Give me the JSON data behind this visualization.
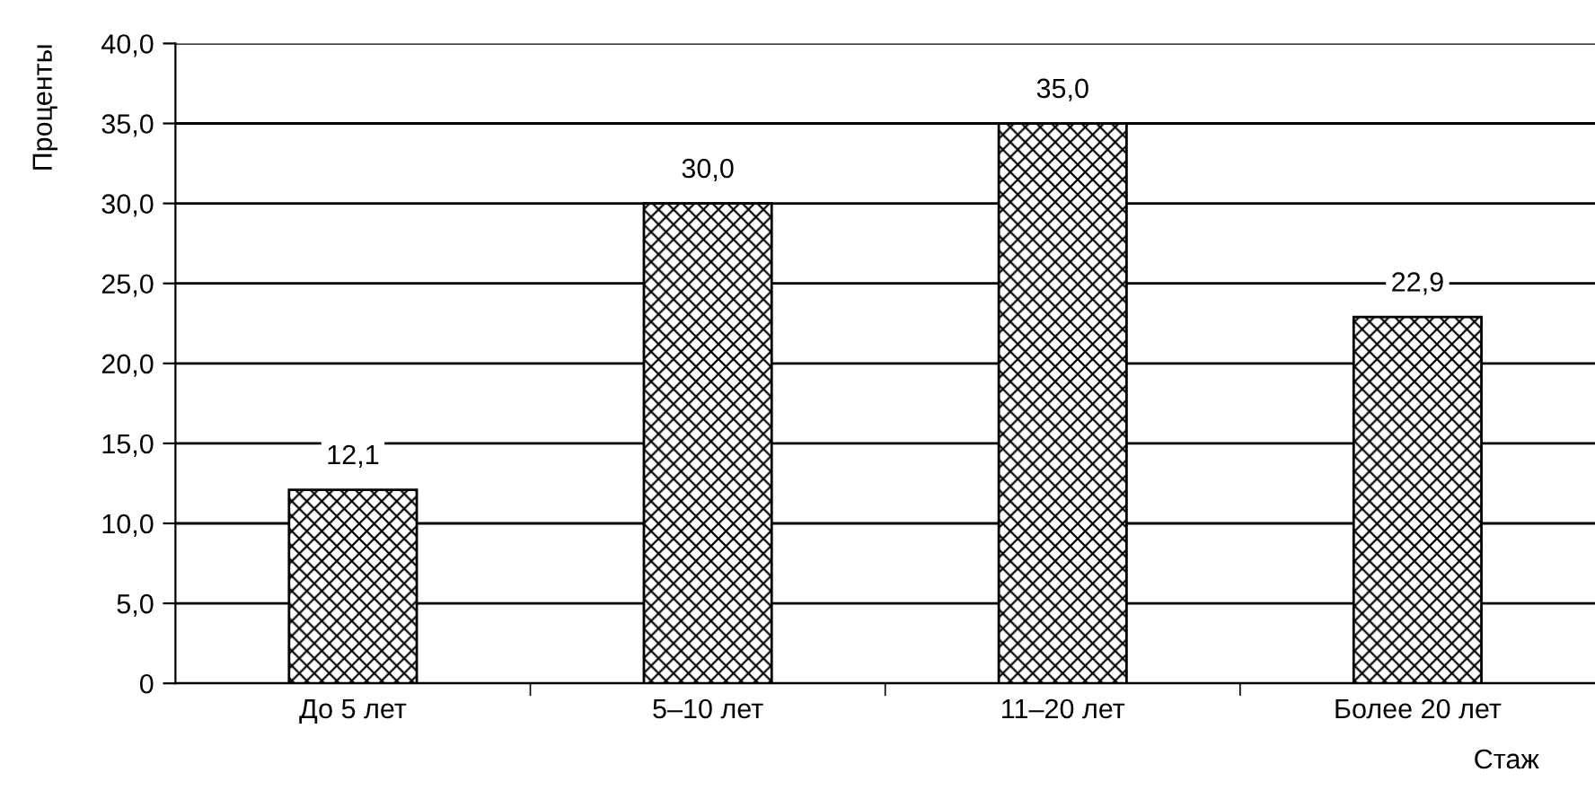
{
  "chart_data": {
    "type": "bar",
    "xlabel": "Стаж",
    "ylabel": "Проценты",
    "categories": [
      "До 5 лет",
      "5–10 лет",
      "11–20 лет",
      "Более 20 лет"
    ],
    "values": [
      12.1,
      30.0,
      35.0,
      22.9
    ],
    "value_labels": [
      "12,1",
      "30,0",
      "35,0",
      "22,9"
    ],
    "color": "#000000",
    "ylim": [
      0,
      40
    ],
    "yticks": [
      0,
      {
        "value": 5,
        "label": "5,0"
      },
      {
        "value": 10,
        "label": "10,0"
      },
      {
        "value": 15,
        "label": "15,0"
      },
      {
        "value": 20,
        "label": "20,0"
      },
      {
        "value": 25,
        "label": "25,0"
      },
      {
        "value": 30,
        "label": "30,0"
      },
      {
        "value": 35,
        "label": "35,0"
      },
      {
        "value": 40,
        "label": "40,0"
      }
    ],
    "grid": "y",
    "legend": false
  }
}
